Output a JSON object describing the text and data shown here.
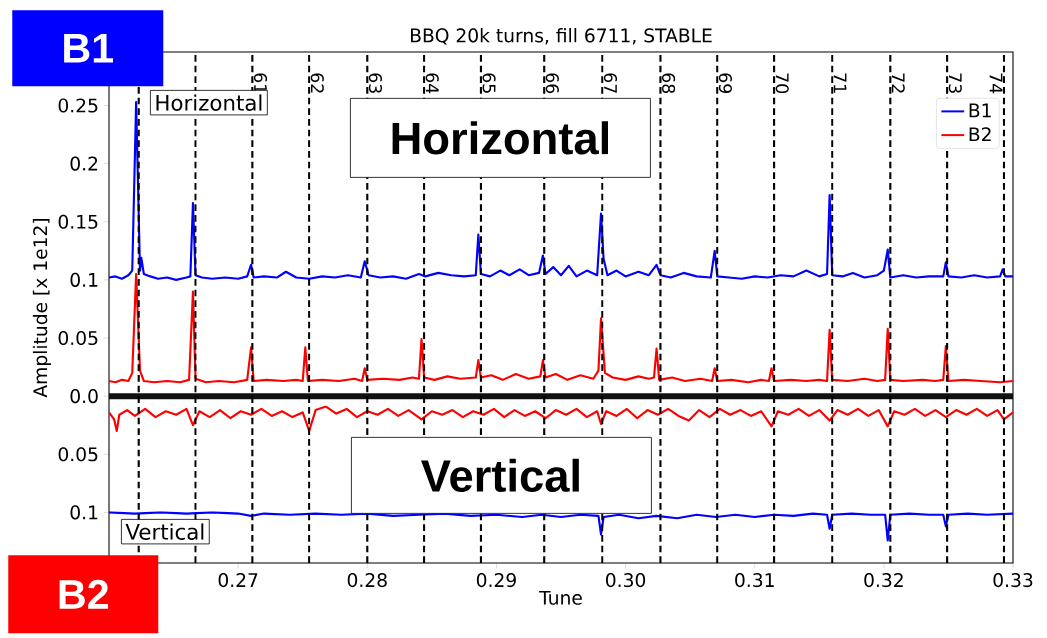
{
  "chart_data": {
    "type": "line",
    "title": "BBQ 20k turns, fill 6711, STABLE",
    "xlabel": "Tune",
    "ylabel": "Amplitude [x 1e12]",
    "annotations": [
      "B1",
      "Horizontal",
      "Horizontal",
      "Vertical",
      "Vertical",
      "B2",
      {
        "text": "61",
        "x": 0.2711,
        "y": 0.28
      },
      {
        "text": "62",
        "x": 0.2755,
        "y": 0.28
      },
      {
        "text": "63",
        "x": 0.28,
        "y": 0.28
      },
      {
        "text": "64",
        "x": 0.2844,
        "y": 0.28
      },
      {
        "text": "65",
        "x": 0.2888,
        "y": 0.28
      },
      {
        "text": "66",
        "x": 0.2937,
        "y": 0.28
      },
      {
        "text": "67",
        "x": 0.2982,
        "y": 0.28
      },
      {
        "text": "68",
        "x": 0.3027,
        "y": 0.28
      },
      {
        "text": "69",
        "x": 0.3071,
        "y": 0.28
      },
      {
        "text": "70",
        "x": 0.3115,
        "y": 0.28
      },
      {
        "text": "71",
        "x": 0.316,
        "y": 0.28
      },
      {
        "text": "72",
        "x": 0.3205,
        "y": 0.28
      },
      {
        "text": "73",
        "x": 0.3249,
        "y": 0.28
      },
      {
        "text": "74",
        "x": 0.3293,
        "y": 0.28
      }
    ],
    "xlim": [
      0.26,
      0.33
    ],
    "ylim": [
      -0.1435,
      0.296
    ],
    "xticks": [
      0.27,
      0.28,
      0.29,
      {
        "value": 0.3,
        "label": "0.30"
      },
      0.31,
      0.32,
      {
        "value": 0.33,
        "label": "0.33"
      }
    ],
    "yticks": [
      {
        "value": -0.1,
        "label": "0.1"
      },
      {
        "value": -0.05,
        "label": "0.05"
      },
      {
        "value": 0,
        "label": "0.0"
      },
      0.05,
      0.1,
      0.15,
      0.2,
      0.25
    ],
    "legend": "top right",
    "marker": "none",
    "line_style": "solid",
    "series": [
      {
        "name": "B1",
        "color": "#0000ff",
        "x": [
          0.26,
          0.2605,
          0.261,
          0.2615,
          0.2618,
          0.2621,
          0.2624,
          0.2625,
          0.2627,
          0.2632,
          0.2638,
          0.2645,
          0.2652,
          0.266,
          0.2663,
          0.2665,
          0.2667,
          0.2672,
          0.268,
          0.269,
          0.27,
          0.2707,
          0.271,
          0.2712,
          0.272,
          0.273,
          0.2737,
          0.2745,
          0.2755,
          0.2765,
          0.2775,
          0.2785,
          0.2795,
          0.2798,
          0.2801,
          0.281,
          0.282,
          0.283,
          0.284,
          0.2845,
          0.2855,
          0.2865,
          0.2875,
          0.2884,
          0.2886,
          0.2888,
          0.2895,
          0.2903,
          0.291,
          0.2918,
          0.2925,
          0.2933,
          0.2936,
          0.2938,
          0.2944,
          0.295,
          0.2956,
          0.2962,
          0.297,
          0.2978,
          0.2981,
          0.2983,
          0.2986,
          0.2993,
          0.3,
          0.301,
          0.3018,
          0.3024,
          0.3027,
          0.3035,
          0.3045,
          0.3055,
          0.3066,
          0.3069,
          0.3071,
          0.308,
          0.309,
          0.31,
          0.311,
          0.312,
          0.313,
          0.314,
          0.315,
          0.3156,
          0.3158,
          0.316,
          0.3168,
          0.3176,
          0.3185,
          0.3195,
          0.32,
          0.3203,
          0.3205,
          0.3215,
          0.3225,
          0.3235,
          0.3246,
          0.3248,
          0.325,
          0.326,
          0.327,
          0.328,
          0.329,
          0.3292,
          0.3294,
          0.33
        ],
        "values": [
          0.102,
          0.103,
          0.101,
          0.104,
          0.108,
          0.253,
          0.108,
          0.119,
          0.105,
          0.103,
          0.101,
          0.102,
          0.1,
          0.102,
          0.103,
          0.166,
          0.104,
          0.102,
          0.101,
          0.102,
          0.101,
          0.103,
          0.113,
          0.102,
          0.103,
          0.102,
          0.107,
          0.102,
          0.101,
          0.103,
          0.102,
          0.104,
          0.102,
          0.116,
          0.104,
          0.102,
          0.103,
          0.101,
          0.105,
          0.103,
          0.106,
          0.104,
          0.103,
          0.104,
          0.139,
          0.105,
          0.103,
          0.108,
          0.104,
          0.109,
          0.104,
          0.106,
          0.121,
          0.105,
          0.111,
          0.104,
          0.112,
          0.103,
          0.108,
          0.104,
          0.157,
          0.118,
          0.104,
          0.108,
          0.103,
          0.107,
          0.104,
          0.113,
          0.104,
          0.102,
          0.106,
          0.103,
          0.102,
          0.125,
          0.103,
          0.102,
          0.101,
          0.103,
          0.102,
          0.104,
          0.103,
          0.108,
          0.103,
          0.105,
          0.173,
          0.104,
          0.103,
          0.106,
          0.102,
          0.104,
          0.108,
          0.126,
          0.102,
          0.104,
          0.102,
          0.103,
          0.103,
          0.115,
          0.103,
          0.102,
          0.104,
          0.102,
          0.103,
          0.109,
          0.103,
          0.103
        ]
      },
      {
        "name": "B2",
        "color": "#ff0000",
        "x": [
          0.26,
          0.2605,
          0.261,
          0.2615,
          0.2618,
          0.2621,
          0.2624,
          0.2627,
          0.2635,
          0.2645,
          0.2655,
          0.2662,
          0.2665,
          0.2667,
          0.2675,
          0.2685,
          0.2697,
          0.2707,
          0.271,
          0.2712,
          0.2722,
          0.2735,
          0.2745,
          0.275,
          0.2752,
          0.2754,
          0.2765,
          0.2778,
          0.279,
          0.2796,
          0.2798,
          0.28,
          0.2812,
          0.2825,
          0.2835,
          0.284,
          0.2842,
          0.2844,
          0.2852,
          0.2862,
          0.2872,
          0.2884,
          0.2886,
          0.2888,
          0.2896,
          0.2905,
          0.2915,
          0.2925,
          0.2934,
          0.2936,
          0.2938,
          0.2946,
          0.2955,
          0.2965,
          0.2975,
          0.2979,
          0.2981,
          0.2984,
          0.299,
          0.3,
          0.301,
          0.3018,
          0.3022,
          0.3024,
          0.3026,
          0.3036,
          0.3046,
          0.3058,
          0.3067,
          0.3069,
          0.3071,
          0.3082,
          0.3095,
          0.3105,
          0.3111,
          0.3113,
          0.3115,
          0.3128,
          0.314,
          0.315,
          0.3156,
          0.3158,
          0.316,
          0.3172,
          0.3185,
          0.3195,
          0.3201,
          0.3203,
          0.3205,
          0.3215,
          0.323,
          0.324,
          0.3246,
          0.3248,
          0.325,
          0.3262,
          0.3275,
          0.329,
          0.33
        ],
        "values": [
          0.013,
          0.012,
          0.014,
          0.013,
          0.02,
          0.105,
          0.022,
          0.013,
          0.012,
          0.013,
          0.012,
          0.014,
          0.09,
          0.015,
          0.012,
          0.013,
          0.012,
          0.014,
          0.042,
          0.013,
          0.014,
          0.013,
          0.014,
          0.013,
          0.042,
          0.013,
          0.014,
          0.013,
          0.015,
          0.013,
          0.024,
          0.014,
          0.015,
          0.014,
          0.016,
          0.015,
          0.049,
          0.016,
          0.014,
          0.017,
          0.015,
          0.016,
          0.031,
          0.016,
          0.018,
          0.014,
          0.019,
          0.015,
          0.017,
          0.031,
          0.016,
          0.019,
          0.014,
          0.018,
          0.015,
          0.022,
          0.067,
          0.02,
          0.016,
          0.014,
          0.017,
          0.015,
          0.016,
          0.041,
          0.014,
          0.016,
          0.013,
          0.015,
          0.013,
          0.024,
          0.013,
          0.014,
          0.012,
          0.014,
          0.013,
          0.024,
          0.013,
          0.014,
          0.013,
          0.014,
          0.013,
          0.057,
          0.014,
          0.013,
          0.015,
          0.013,
          0.014,
          0.058,
          0.014,
          0.013,
          0.014,
          0.013,
          0.014,
          0.043,
          0.013,
          0.014,
          0.013,
          0.012,
          0.013
        ]
      },
      {
        "color": "#ff0000",
        "x": [
          0.26,
          0.2604,
          0.2606,
          0.2608,
          0.2614,
          0.262,
          0.2628,
          0.2636,
          0.2644,
          0.2652,
          0.266,
          0.2665,
          0.267,
          0.2678,
          0.2686,
          0.2694,
          0.2702,
          0.271,
          0.2718,
          0.2726,
          0.2734,
          0.2742,
          0.275,
          0.2755,
          0.276,
          0.2768,
          0.2776,
          0.2784,
          0.2792,
          0.28,
          0.2808,
          0.2816,
          0.2824,
          0.2832,
          0.2842,
          0.285,
          0.2858,
          0.2866,
          0.2874,
          0.2882,
          0.289,
          0.2898,
          0.2906,
          0.2914,
          0.2922,
          0.293,
          0.2938,
          0.2946,
          0.2954,
          0.2962,
          0.297,
          0.2978,
          0.2981,
          0.2985,
          0.2993,
          0.3001,
          0.3009,
          0.3017,
          0.3025,
          0.3033,
          0.3041,
          0.3049,
          0.3057,
          0.3065,
          0.3073,
          0.3081,
          0.3089,
          0.3097,
          0.3105,
          0.3113,
          0.3118,
          0.3126,
          0.3134,
          0.3142,
          0.315,
          0.3158,
          0.3164,
          0.3172,
          0.318,
          0.3188,
          0.3196,
          0.3203,
          0.3208,
          0.3216,
          0.3224,
          0.3232,
          0.324,
          0.3248,
          0.3256,
          0.3264,
          0.3272,
          0.328,
          0.3288,
          0.3293,
          0.33
        ],
        "values": [
          -0.014,
          -0.02,
          -0.03,
          -0.016,
          -0.012,
          -0.017,
          -0.011,
          -0.018,
          -0.013,
          -0.016,
          -0.011,
          -0.025,
          -0.013,
          -0.018,
          -0.012,
          -0.019,
          -0.013,
          -0.016,
          -0.011,
          -0.017,
          -0.013,
          -0.018,
          -0.014,
          -0.03,
          -0.012,
          -0.009,
          -0.015,
          -0.011,
          -0.018,
          -0.013,
          -0.016,
          -0.011,
          -0.017,
          -0.012,
          -0.02,
          -0.013,
          -0.016,
          -0.012,
          -0.018,
          -0.013,
          -0.016,
          -0.011,
          -0.018,
          -0.012,
          -0.017,
          -0.013,
          -0.019,
          -0.012,
          -0.016,
          -0.011,
          -0.018,
          -0.013,
          -0.024,
          -0.013,
          -0.017,
          -0.011,
          -0.019,
          -0.012,
          -0.016,
          -0.011,
          -0.017,
          -0.021,
          -0.012,
          -0.018,
          -0.011,
          -0.016,
          -0.012,
          -0.017,
          -0.013,
          -0.026,
          -0.013,
          -0.016,
          -0.011,
          -0.017,
          -0.012,
          -0.021,
          -0.012,
          -0.016,
          -0.011,
          -0.017,
          -0.012,
          -0.026,
          -0.013,
          -0.016,
          -0.011,
          -0.017,
          -0.012,
          -0.018,
          -0.012,
          -0.016,
          -0.011,
          -0.017,
          -0.012,
          -0.02,
          -0.014
        ]
      },
      {
        "color": "#0000ff",
        "x": [
          0.26,
          0.262,
          0.264,
          0.266,
          0.268,
          0.27,
          0.271,
          0.272,
          0.274,
          0.276,
          0.278,
          0.28,
          0.282,
          0.284,
          0.286,
          0.288,
          0.29,
          0.292,
          0.2935,
          0.295,
          0.2965,
          0.2979,
          0.2981,
          0.2983,
          0.2995,
          0.301,
          0.3024,
          0.304,
          0.3055,
          0.307,
          0.3085,
          0.31,
          0.3115,
          0.313,
          0.3145,
          0.3156,
          0.3158,
          0.316,
          0.3175,
          0.319,
          0.3201,
          0.3203,
          0.3205,
          0.322,
          0.3235,
          0.3246,
          0.3248,
          0.325,
          0.3265,
          0.328,
          0.33
        ],
        "values": [
          -0.1,
          -0.101,
          -0.1,
          -0.101,
          -0.1,
          -0.101,
          -0.103,
          -0.101,
          -0.102,
          -0.101,
          -0.102,
          -0.101,
          -0.103,
          -0.102,
          -0.101,
          -0.103,
          -0.102,
          -0.104,
          -0.102,
          -0.104,
          -0.102,
          -0.103,
          -0.119,
          -0.104,
          -0.102,
          -0.105,
          -0.103,
          -0.105,
          -0.102,
          -0.104,
          -0.102,
          -0.104,
          -0.102,
          -0.103,
          -0.101,
          -0.102,
          -0.114,
          -0.102,
          -0.101,
          -0.102,
          -0.102,
          -0.124,
          -0.102,
          -0.101,
          -0.102,
          -0.102,
          -0.112,
          -0.102,
          -0.101,
          -0.102,
          -0.101
        ]
      }
    ],
    "ref_lines": [
      {
        "axis": "y",
        "value": 0,
        "color": "#111111",
        "line_style": "solid"
      },
      {
        "axis": "x",
        "value": 0.2623,
        "color": "#000000",
        "line_style": "dashed"
      },
      {
        "axis": "x",
        "value": 0.2667,
        "color": "#000000",
        "line_style": "dashed"
      },
      {
        "axis": "x",
        "value": 0.2711,
        "color": "#000000",
        "line_style": "dashed"
      },
      {
        "axis": "x",
        "value": 0.2755,
        "color": "#000000",
        "line_style": "dashed"
      },
      {
        "axis": "x",
        "value": 0.28,
        "color": "#000000",
        "line_style": "dashed"
      },
      {
        "axis": "x",
        "value": 0.2844,
        "color": "#000000",
        "line_style": "dashed"
      },
      {
        "axis": "x",
        "value": 0.2888,
        "color": "#000000",
        "line_style": "dashed"
      },
      {
        "axis": "x",
        "value": 0.2937,
        "color": "#000000",
        "line_style": "dashed"
      },
      {
        "axis": "x",
        "value": 0.2982,
        "color": "#000000",
        "line_style": "dashed"
      },
      {
        "axis": "x",
        "value": 0.3027,
        "color": "#000000",
        "line_style": "dashed"
      },
      {
        "axis": "x",
        "value": 0.3071,
        "color": "#000000",
        "line_style": "dashed"
      },
      {
        "axis": "x",
        "value": 0.3115,
        "color": "#000000",
        "line_style": "dashed"
      },
      {
        "axis": "x",
        "value": 0.316,
        "color": "#000000",
        "line_style": "dashed"
      },
      {
        "axis": "x",
        "value": 0.3205,
        "color": "#000000",
        "line_style": "dashed"
      },
      {
        "axis": "x",
        "value": 0.3249,
        "color": "#000000",
        "line_style": "dashed"
      },
      {
        "axis": "x",
        "value": 0.3293,
        "color": "#000000",
        "line_style": "dashed"
      }
    ]
  }
}
